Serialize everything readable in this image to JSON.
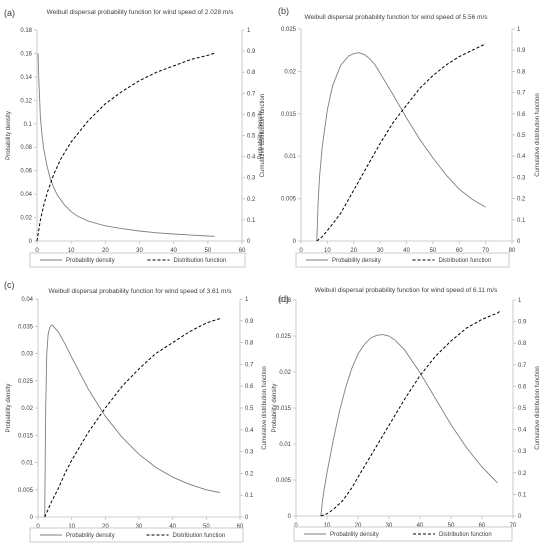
{
  "chart_data": [
    {
      "panel_label": "(a)",
      "type": "line",
      "title": "Weibull dispersal probability function for wind speed of 2.028 m/s",
      "xlabel": "",
      "ylabel": "Probability density",
      "y2label": "Cumulative distribution function",
      "xlim": [
        0,
        60
      ],
      "ylim": [
        0,
        0.18
      ],
      "y2lim": [
        0,
        1
      ],
      "xticks": [
        "0",
        "10",
        "20",
        "30",
        "40",
        "50",
        "60"
      ],
      "yticks": [
        "0",
        "0.02",
        "0.04",
        "0.06",
        "0.08",
        "0.1",
        "0.12",
        "0.14",
        "0.16",
        "0.18"
      ],
      "y2ticks": [
        "0",
        "0.1",
        "0.2",
        "0.3",
        "0.4",
        "0.5",
        "0.6",
        "0.7",
        "0.8",
        "0.9",
        "1"
      ],
      "grid": false,
      "legend_position": "bottom",
      "series": [
        {
          "name": "Probability density",
          "axis": "left",
          "style": "solid",
          "color": "#7f7f7f",
          "x": [
            0.3,
            0.5,
            0.8,
            1,
            1.5,
            2,
            3,
            4,
            5,
            6,
            8,
            10,
            12,
            15,
            18,
            20,
            25,
            30,
            35,
            40,
            45,
            50,
            52
          ],
          "y": [
            0.16,
            0.14,
            0.12,
            0.105,
            0.09,
            0.078,
            0.063,
            0.052,
            0.045,
            0.039,
            0.031,
            0.025,
            0.021,
            0.017,
            0.0145,
            0.013,
            0.0105,
            0.0085,
            0.007,
            0.006,
            0.005,
            0.0043,
            0.004
          ]
        },
        {
          "name": "Distribution function",
          "axis": "right",
          "style": "dashed",
          "color": "#000000",
          "x": [
            0,
            1,
            2,
            3,
            5,
            7,
            10,
            15,
            20,
            25,
            30,
            35,
            40,
            45,
            50,
            52
          ],
          "y": [
            0,
            0.1,
            0.17,
            0.23,
            0.32,
            0.39,
            0.47,
            0.57,
            0.65,
            0.71,
            0.76,
            0.8,
            0.83,
            0.86,
            0.88,
            0.89
          ]
        }
      ]
    },
    {
      "panel_label": "(b)",
      "type": "line",
      "title": "Weibull dispersal probability function for wind speed of 5.56 m/s",
      "xlabel": "",
      "ylabel": "Probability density",
      "y2label": "Cumulative distribution function",
      "xlim": [
        0,
        80
      ],
      "ylim": [
        0,
        0.025
      ],
      "y2lim": [
        0,
        1
      ],
      "xticks": [
        "0",
        "10",
        "20",
        "30",
        "40",
        "50",
        "60",
        "70",
        "80"
      ],
      "yticks": [
        "0",
        "0.005",
        "0.01",
        "0.015",
        "0.02",
        "0.025"
      ],
      "y2ticks": [
        "0",
        "0.1",
        "0.2",
        "0.3",
        "0.4",
        "0.5",
        "0.6",
        "0.7",
        "0.8",
        "0.9",
        "1"
      ],
      "grid": false,
      "legend_position": "bottom",
      "series": [
        {
          "name": "Probability density",
          "axis": "left",
          "style": "solid",
          "color": "#7f7f7f",
          "x": [
            6,
            6.5,
            7,
            8,
            10,
            12,
            15,
            18,
            20,
            22,
            24,
            26,
            28,
            30,
            35,
            40,
            45,
            50,
            55,
            60,
            65,
            70
          ],
          "y": [
            0,
            0.0045,
            0.0075,
            0.011,
            0.0155,
            0.0183,
            0.0207,
            0.0218,
            0.0221,
            0.0222,
            0.022,
            0.0215,
            0.0208,
            0.0198,
            0.0172,
            0.0145,
            0.012,
            0.0098,
            0.0078,
            0.0061,
            0.0049,
            0.004
          ]
        },
        {
          "name": "Distribution function",
          "axis": "right",
          "style": "dashed",
          "color": "#000000",
          "x": [
            6,
            8,
            10,
            12,
            15,
            20,
            25,
            30,
            35,
            40,
            45,
            50,
            55,
            60,
            65,
            70
          ],
          "y": [
            0,
            0.02,
            0.05,
            0.08,
            0.13,
            0.24,
            0.35,
            0.46,
            0.56,
            0.64,
            0.72,
            0.78,
            0.83,
            0.87,
            0.9,
            0.93
          ]
        }
      ]
    },
    {
      "panel_label": "(c)",
      "type": "line",
      "title": "Weibull dispersal probability function for wind speed of 3.61 m/s",
      "xlabel": "",
      "ylabel": "Probability density",
      "y2label": "Cumulative distribution function",
      "xlim": [
        0,
        60
      ],
      "ylim": [
        0,
        0.04
      ],
      "y2lim": [
        0,
        1
      ],
      "xticks": [
        "0",
        "10",
        "20",
        "30",
        "40",
        "50",
        "60"
      ],
      "yticks": [
        "0",
        "0.005",
        "0.01",
        "0.015",
        "0.02",
        "0.025",
        "0.03",
        "0.035",
        "0.04"
      ],
      "y2ticks": [
        "0",
        "0.1",
        "0.2",
        "0.3",
        "0.4",
        "0.5",
        "0.6",
        "0.7",
        "0.8",
        "0.9",
        "1"
      ],
      "grid": false,
      "legend_position": "bottom",
      "series": [
        {
          "name": "Probability density",
          "axis": "left",
          "style": "solid",
          "color": "#7f7f7f",
          "x": [
            2,
            2.3,
            2.6,
            3,
            3.5,
            4,
            4.5,
            5,
            6,
            8,
            10,
            15,
            20,
            25,
            30,
            35,
            40,
            45,
            50,
            54
          ],
          "y": [
            0,
            0.02,
            0.03,
            0.0335,
            0.0348,
            0.0352,
            0.0351,
            0.0347,
            0.034,
            0.0318,
            0.0293,
            0.0234,
            0.0185,
            0.0146,
            0.0115,
            0.0091,
            0.0073,
            0.006,
            0.005,
            0.0045
          ]
        },
        {
          "name": "Distribution function",
          "axis": "right",
          "style": "dashed",
          "color": "#000000",
          "x": [
            2,
            4,
            6,
            8,
            10,
            15,
            20,
            25,
            30,
            35,
            40,
            45,
            50,
            54
          ],
          "y": [
            0,
            0.07,
            0.13,
            0.2,
            0.26,
            0.39,
            0.5,
            0.6,
            0.68,
            0.75,
            0.8,
            0.85,
            0.89,
            0.91
          ]
        }
      ]
    },
    {
      "panel_label": "(d)",
      "type": "line",
      "title": "Weibull dispersal probability function for wind speed of 6.11 m/s",
      "xlabel": "",
      "ylabel": "Probability density",
      "y2label": "Cumulative distribution function",
      "xlim": [
        0,
        70
      ],
      "ylim": [
        0,
        0.03
      ],
      "y2lim": [
        0,
        1
      ],
      "xticks": [
        "0",
        "10",
        "20",
        "30",
        "40",
        "50",
        "60",
        "70"
      ],
      "yticks": [
        "0",
        "0.005",
        "0.01",
        "0.015",
        "0.02",
        "0.025",
        "0.03"
      ],
      "y2ticks": [
        "0",
        "0.1",
        "0.2",
        "0.3",
        "0.4",
        "0.5",
        "0.6",
        "0.7",
        "0.8",
        "0.9",
        "1"
      ],
      "grid": false,
      "legend_position": "bottom",
      "series": [
        {
          "name": "Probability density",
          "axis": "left",
          "style": "solid",
          "color": "#7f7f7f",
          "x": [
            8,
            8.5,
            9,
            10,
            12,
            14,
            16,
            18,
            20,
            22,
            24,
            26,
            28,
            30,
            32,
            35,
            40,
            45,
            50,
            55,
            60,
            65
          ],
          "y": [
            0,
            0.002,
            0.0035,
            0.006,
            0.0105,
            0.0145,
            0.0178,
            0.0205,
            0.0225,
            0.0238,
            0.0247,
            0.0251,
            0.0252,
            0.025,
            0.0244,
            0.0231,
            0.0199,
            0.0163,
            0.0127,
            0.0095,
            0.0068,
            0.0046
          ]
        },
        {
          "name": "Distribution function",
          "axis": "right",
          "style": "dashed",
          "color": "#000000",
          "x": [
            8,
            10,
            12,
            15,
            18,
            20,
            25,
            30,
            35,
            40,
            45,
            50,
            55,
            60,
            65,
            66
          ],
          "y": [
            0,
            0.01,
            0.03,
            0.07,
            0.13,
            0.18,
            0.3,
            0.42,
            0.54,
            0.65,
            0.74,
            0.81,
            0.87,
            0.91,
            0.94,
            0.95
          ]
        }
      ]
    }
  ]
}
